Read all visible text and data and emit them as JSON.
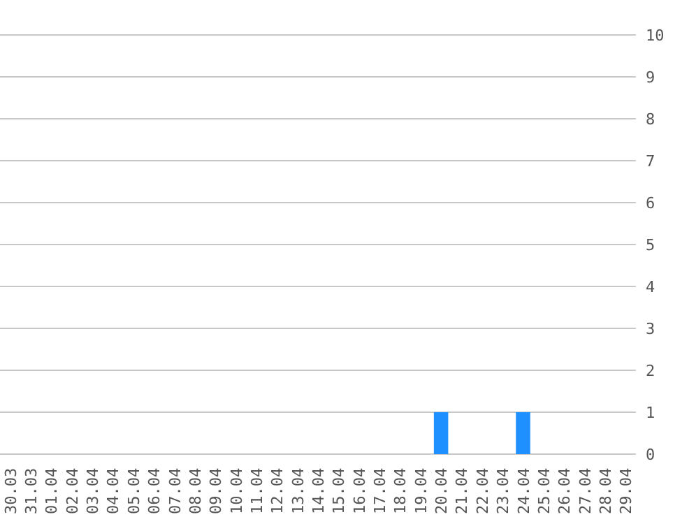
{
  "chart_data": {
    "type": "bar",
    "categories": [
      "30.03",
      "31.03",
      "01.04",
      "02.04",
      "03.04",
      "04.04",
      "05.04",
      "06.04",
      "07.04",
      "08.04",
      "09.04",
      "10.04",
      "11.04",
      "12.04",
      "13.04",
      "14.04",
      "15.04",
      "16.04",
      "17.04",
      "18.04",
      "19.04",
      "20.04",
      "21.04",
      "22.04",
      "23.04",
      "24.04",
      "25.04",
      "26.04",
      "27.04",
      "28.04",
      "29.04"
    ],
    "values": [
      0,
      0,
      0,
      0,
      0,
      0,
      0,
      0,
      0,
      0,
      0,
      0,
      0,
      0,
      0,
      0,
      0,
      0,
      0,
      0,
      0,
      1,
      0,
      0,
      0,
      1,
      0,
      0,
      0,
      0,
      0
    ],
    "color": "#1e90ff",
    "ylim": [
      0,
      10
    ],
    "yticks": [
      0,
      1,
      2,
      3,
      4,
      5,
      6,
      7,
      8,
      9,
      10
    ],
    "grid": "y"
  }
}
